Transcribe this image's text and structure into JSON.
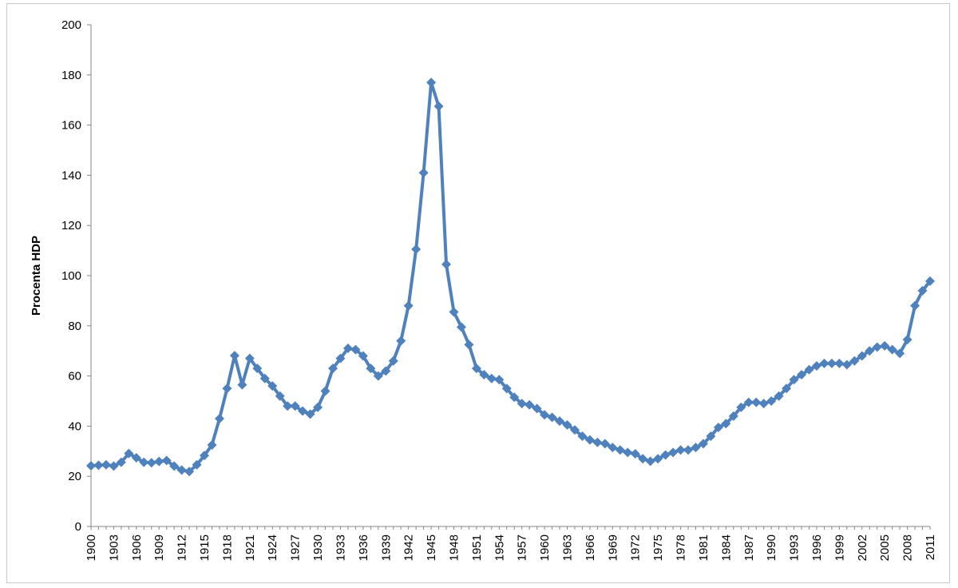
{
  "chart_data": {
    "type": "line",
    "title": "",
    "xlabel": "",
    "ylabel": "Procenta HDP",
    "ylim": [
      0,
      200
    ],
    "y_ticks": [
      0,
      20,
      40,
      60,
      80,
      100,
      120,
      140,
      160,
      180,
      200
    ],
    "x_range": [
      1900,
      2011
    ],
    "x_tick_labels": [
      "1900",
      "1903",
      "1906",
      "1909",
      "1912",
      "1915",
      "1918",
      "1921",
      "1924",
      "1927",
      "1930",
      "1933",
      "1936",
      "1939",
      "1942",
      "1945",
      "1948",
      "1951",
      "1954",
      "1957",
      "1960",
      "1963",
      "1966",
      "1969",
      "1972",
      "1975",
      "1978",
      "1981",
      "1984",
      "1987",
      "1990",
      "1993",
      "1996",
      "1999",
      "2002",
      "2005",
      "2008",
      "2011"
    ],
    "grid": false,
    "legend": "none",
    "series_color": "#4f81bd",
    "marker": "diamond",
    "series": [
      {
        "x": [
          1900,
          1901,
          1902,
          1903,
          1904,
          1905,
          1906,
          1907,
          1908,
          1909,
          1910,
          1911,
          1912,
          1913,
          1914,
          1915,
          1916,
          1917,
          1918,
          1919,
          1920,
          1921,
          1922,
          1923,
          1924,
          1925,
          1926,
          1927,
          1928,
          1929,
          1930,
          1931,
          1932,
          1933,
          1934,
          1935,
          1936,
          1937,
          1938,
          1939,
          1940,
          1941,
          1942,
          1943,
          1944,
          1945,
          1946,
          1947,
          1948,
          1949,
          1950,
          1951,
          1952,
          1953,
          1954,
          1955,
          1956,
          1957,
          1958,
          1959,
          1960,
          1961,
          1962,
          1963,
          1964,
          1965,
          1966,
          1967,
          1968,
          1969,
          1970,
          1971,
          1972,
          1973,
          1974,
          1975,
          1976,
          1977,
          1978,
          1979,
          1980,
          1981,
          1982,
          1983,
          1984,
          1985,
          1986,
          1987,
          1988,
          1989,
          1990,
          1991,
          1992,
          1993,
          1994,
          1995,
          1996,
          1997,
          1998,
          1999,
          2000,
          2001,
          2002,
          2003,
          2004,
          2005,
          2006,
          2007,
          2008,
          2009,
          2010,
          2011
        ],
        "values": [
          24.2,
          24.4,
          24.6,
          24.1,
          25.6,
          29.1,
          27.4,
          25.6,
          25.4,
          25.9,
          26.3,
          24.1,
          22.5,
          21.9,
          24.6,
          28.3,
          32.5,
          43.0,
          55.0,
          68.1,
          56.5,
          67.0,
          63.0,
          59.0,
          56.0,
          52.0,
          48.0,
          48.0,
          46.0,
          44.8,
          47.5,
          54.0,
          63.0,
          67.0,
          71.0,
          70.5,
          68.0,
          63.0,
          60.0,
          62.0,
          66.0,
          74.0,
          88.0,
          110.5,
          141.0,
          177.0,
          167.5,
          104.5,
          85.5,
          79.5,
          72.5,
          63.0,
          60.5,
          59.0,
          58.5,
          55.0,
          51.5,
          49.0,
          48.5,
          47.0,
          44.5,
          43.5,
          42.0,
          40.5,
          38.5,
          36.0,
          34.5,
          33.5,
          33.0,
          31.5,
          30.5,
          29.5,
          29.0,
          27.0,
          26.0,
          27.0,
          28.5,
          29.5,
          30.5,
          30.5,
          31.5,
          33.0,
          36.0,
          39.5,
          41.0,
          44.0,
          47.5,
          49.5,
          49.5,
          49.0,
          50.0,
          52.0,
          55.0,
          58.5,
          60.5,
          62.5,
          64.0,
          65.0,
          65.0,
          65.0,
          64.5,
          66.0,
          68.0,
          70.0,
          71.5,
          72.0,
          70.5,
          69.0,
          74.5,
          88.0,
          94.0,
          97.8
        ]
      }
    ]
  }
}
